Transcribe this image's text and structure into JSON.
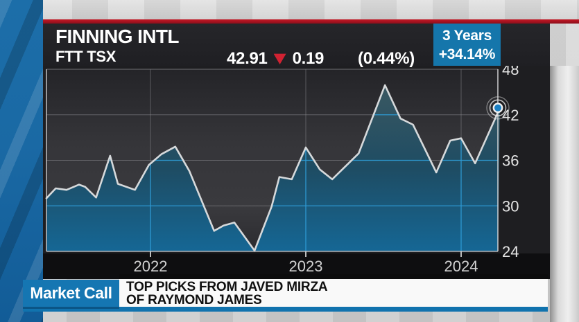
{
  "header": {
    "title": "FINNING INTL",
    "ticker": "FTT TSX",
    "price": "42.91",
    "change": "0.19",
    "change_pct": "(0.44%)",
    "range_label": "3 Years",
    "range_value": "+34.14%"
  },
  "banner": {
    "brand": "Market Call",
    "line1": "TOP PICKS FROM JAVED MIRZA",
    "line2": "OF RAYMOND JAMES"
  },
  "colors": {
    "accent_blue": "#1576b2",
    "red_bar": "#a31220",
    "triangle_red": "#d02232",
    "chart_line": "#d6d9db",
    "grid_blue": "#2f9cd6",
    "area_top": "#3a5862",
    "area_bottom": "#156795"
  },
  "chart_data": {
    "type": "area",
    "title": "Finning Intl (FTT TSX) 3-year price chart",
    "xlabel": "",
    "ylabel": "",
    "x": [
      2021.33,
      2021.39,
      2021.46,
      2021.54,
      2021.58,
      2021.65,
      2021.74,
      2021.79,
      2021.9,
      2021.99,
      2022.07,
      2022.16,
      2022.25,
      2022.41,
      2022.47,
      2022.54,
      2022.67,
      2022.78,
      2022.83,
      2022.91,
      2023.0,
      2023.09,
      2023.17,
      2023.34,
      2023.51,
      2023.61,
      2023.69,
      2023.84,
      2023.93,
      2024.0,
      2024.09,
      2024.25
    ],
    "values": [
      31.0,
      32.3,
      32.1,
      32.8,
      32.5,
      31.1,
      36.6,
      32.9,
      32.1,
      35.4,
      36.8,
      37.8,
      34.6,
      26.7,
      27.4,
      27.8,
      24.1,
      29.9,
      33.8,
      33.5,
      37.7,
      34.8,
      33.5,
      36.9,
      45.9,
      41.5,
      40.7,
      34.4,
      38.6,
      38.9,
      35.6,
      42.91
    ],
    "last_point": {
      "x": 2024.25,
      "value": 42.91,
      "marker": "bullseye-dot"
    },
    "xticks": [
      2022,
      2023,
      2024
    ],
    "yticks": [
      24,
      30,
      36,
      42,
      48
    ],
    "ylim": [
      24,
      48
    ],
    "xlim": [
      2021.33,
      2024.26
    ],
    "grid": true,
    "legend": false
  }
}
